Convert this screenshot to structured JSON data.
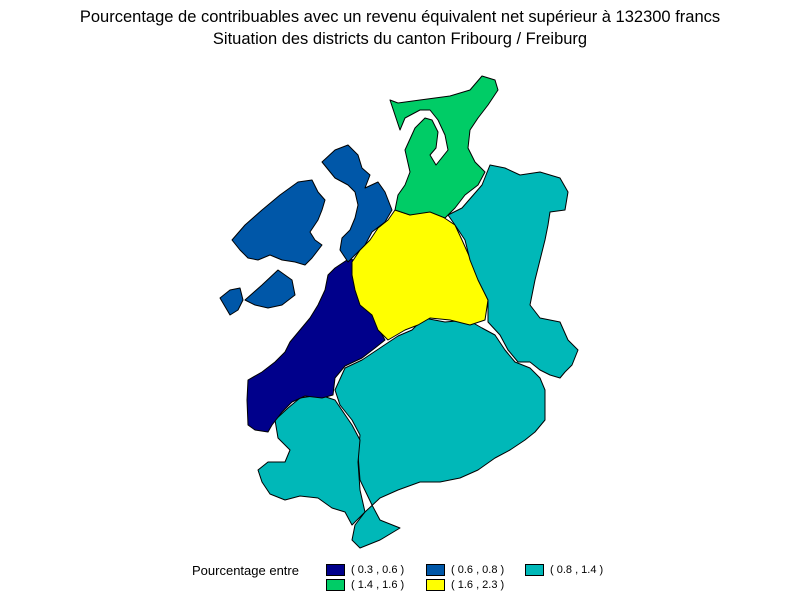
{
  "title": {
    "line1": "Pourcentage de contribuables avec un revenu équivalent net supérieur à 132300 francs",
    "line2": "Situation des districts du canton Fribourg / Freiburg"
  },
  "legend": {
    "label": "Pourcentage entre",
    "items": [
      {
        "label": "( 0.3 , 0.6 )",
        "color": "#00008b"
      },
      {
        "label": "( 0.6 , 0.8 )",
        "color": "#0057a8"
      },
      {
        "label": "( 0.8 , 1.4 )",
        "color": "#00b8b8"
      },
      {
        "label": "( 1.4 , 1.6 )",
        "color": "#00cc66"
      },
      {
        "label": "( 1.6 , 2.3 )",
        "color": "#ffff00"
      }
    ]
  },
  "regions": [
    {
      "name": "district-dark-blue",
      "class_index": 0
    },
    {
      "name": "district-blue-lake",
      "class_index": 1
    },
    {
      "name": "district-blue-enclave-1",
      "class_index": 1
    },
    {
      "name": "district-blue-enclave-2",
      "class_index": 1
    },
    {
      "name": "district-blue-north",
      "class_index": 1
    },
    {
      "name": "district-green",
      "class_index": 3
    },
    {
      "name": "district-yellow",
      "class_index": 4
    },
    {
      "name": "district-teal-east",
      "class_index": 2
    },
    {
      "name": "district-teal-south",
      "class_index": 2
    },
    {
      "name": "district-teal-southwest",
      "class_index": 2
    }
  ]
}
